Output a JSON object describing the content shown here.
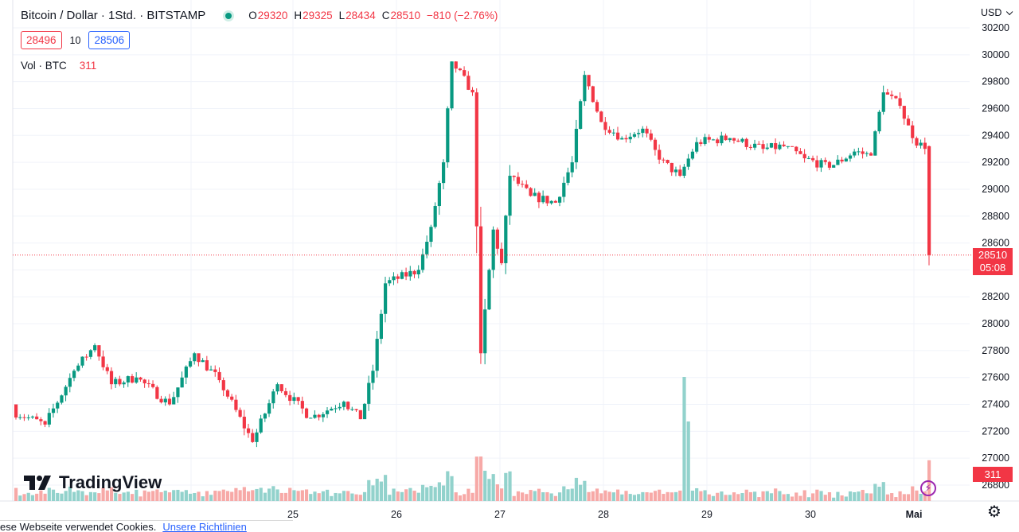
{
  "header": {
    "title": "Bitcoin / Dollar · 1Std. · BITSTAMP",
    "ohlc": {
      "o_label": "O",
      "o": "29320",
      "h_label": "H",
      "h": "29325",
      "l_label": "L",
      "l": "28434",
      "c_label": "C",
      "c": "28510",
      "change": "−810 (−2.76%)"
    },
    "bid": "28496",
    "spread": "10",
    "ask": "28506",
    "volume_label": "Vol · BTC",
    "volume_value": "311",
    "currency": "USD"
  },
  "last_price": {
    "value": "28510",
    "countdown": "05:08"
  },
  "volume_badge": "311",
  "logo_text": "TradingView",
  "cookie_bar": {
    "text": "ese Webseite verwendet Cookies.",
    "link": "Unsere Richtlinien"
  },
  "colors": {
    "up": "#089981",
    "down": "#f23645",
    "grid": "#f0f3fa",
    "up_volume": "#92d2cc",
    "down_volume": "#f7a9a7"
  },
  "icons": {
    "status": "market-status-dot",
    "lightning": "lightning-icon",
    "settings": "gear-icon",
    "logo": "tradingview-logo-icon"
  },
  "chart_data": {
    "type": "candlestick",
    "symbol": "Bitcoin / Dollar",
    "interval": "1Std.",
    "exchange": "BITSTAMP",
    "y_axis_ticks": [
      26800,
      27000,
      27200,
      27400,
      27600,
      27800,
      28000,
      28200,
      28400,
      28600,
      28800,
      29000,
      29200,
      29400,
      29600,
      29800,
      30000,
      30200
    ],
    "ylim": [
      26700,
      30220
    ],
    "x_tick_labels": [
      "25",
      "26",
      "27",
      "28",
      "29",
      "30",
      "Mai"
    ],
    "grid": true,
    "legend_placement": "top-left",
    "last_price_line": 28510,
    "segments": [
      {
        "n": 8,
        "to": 27250,
        "min": 27190,
        "max": 27400
      },
      {
        "n": 7,
        "to": 27650,
        "min": 27230,
        "max": 27680
      },
      {
        "n": 5,
        "to": 27840,
        "min": 27580,
        "max": 27880
      },
      {
        "n": 4,
        "to": 27550,
        "min": 27450,
        "max": 27820
      },
      {
        "n": 6,
        "to": 27600,
        "min": 27520,
        "max": 27700
      },
      {
        "n": 8,
        "to": 27400,
        "min": 27330,
        "max": 27680
      },
      {
        "n": 6,
        "to": 27780,
        "min": 27400,
        "max": 28000
      },
      {
        "n": 6,
        "to": 27580,
        "min": 27520,
        "max": 27760
      },
      {
        "n": 8,
        "to": 27120,
        "min": 27030,
        "max": 27600
      },
      {
        "n": 6,
        "to": 27550,
        "min": 27000,
        "max": 27650
      },
      {
        "n": 8,
        "to": 27300,
        "min": 27100,
        "max": 27550
      },
      {
        "n": 8,
        "to": 27420,
        "min": 27200,
        "max": 27560
      },
      {
        "n": 4,
        "to": 27290,
        "min": 27230,
        "max": 27450
      },
      {
        "n": 3,
        "to": 27650,
        "min": 27320,
        "max": 27700
      },
      {
        "n": 3,
        "to": 28300,
        "min": 27600,
        "max": 28380
      },
      {
        "n": 8,
        "to": 28400,
        "min": 28280,
        "max": 28500
      },
      {
        "n": 3,
        "to": 28720,
        "min": 28380,
        "max": 28790
      },
      {
        "n": 3,
        "to": 29200,
        "min": 28700,
        "max": 29300
      },
      {
        "n": 2,
        "to": 29950,
        "min": 29100,
        "max": 30020
      },
      {
        "n": 5,
        "to": 29720,
        "min": 29550,
        "max": 29990
      },
      {
        "n": 2,
        "to": 27780,
        "min": 27700,
        "max": 29750
      },
      {
        "n": 3,
        "to": 28700,
        "min": 27500,
        "max": 28760
      },
      {
        "n": 2,
        "to": 28450,
        "min": 28200,
        "max": 28720
      },
      {
        "n": 2,
        "to": 29100,
        "min": 28350,
        "max": 29180
      },
      {
        "n": 5,
        "to": 28950,
        "min": 28750,
        "max": 29280
      },
      {
        "n": 6,
        "to": 28900,
        "min": 28700,
        "max": 29100
      },
      {
        "n": 4,
        "to": 29200,
        "min": 28780,
        "max": 29500
      },
      {
        "n": 3,
        "to": 29850,
        "min": 29150,
        "max": 29880
      },
      {
        "n": 4,
        "to": 29500,
        "min": 29380,
        "max": 29800
      },
      {
        "n": 5,
        "to": 29380,
        "min": 29300,
        "max": 29580
      },
      {
        "n": 5,
        "to": 29450,
        "min": 29320,
        "max": 29560
      },
      {
        "n": 4,
        "to": 29220,
        "min": 29180,
        "max": 29470
      },
      {
        "n": 5,
        "to": 29100,
        "min": 28920,
        "max": 29300
      },
      {
        "n": 4,
        "to": 29350,
        "min": 29080,
        "max": 29440
      },
      {
        "n": 8,
        "to": 29380,
        "min": 29280,
        "max": 29460
      },
      {
        "n": 8,
        "to": 29300,
        "min": 29240,
        "max": 29420
      },
      {
        "n": 5,
        "to": 29320,
        "min": 29250,
        "max": 29400
      },
      {
        "n": 5,
        "to": 29230,
        "min": 29050,
        "max": 29320
      },
      {
        "n": 6,
        "to": 29160,
        "min": 29100,
        "max": 29250
      },
      {
        "n": 6,
        "to": 29280,
        "min": 29180,
        "max": 29350
      },
      {
        "n": 4,
        "to": 29250,
        "min": 29200,
        "max": 29330
      },
      {
        "n": 3,
        "to": 29720,
        "min": 29250,
        "max": 29960
      },
      {
        "n": 4,
        "to": 29620,
        "min": 29500,
        "max": 29850
      },
      {
        "n": 3,
        "to": 29380,
        "min": 29220,
        "max": 29550
      },
      {
        "n": 3,
        "to": 29300,
        "min": 29180,
        "max": 29460
      },
      {
        "n": 1,
        "to": 28510,
        "min": 28434,
        "max": 29325
      }
    ]
  }
}
